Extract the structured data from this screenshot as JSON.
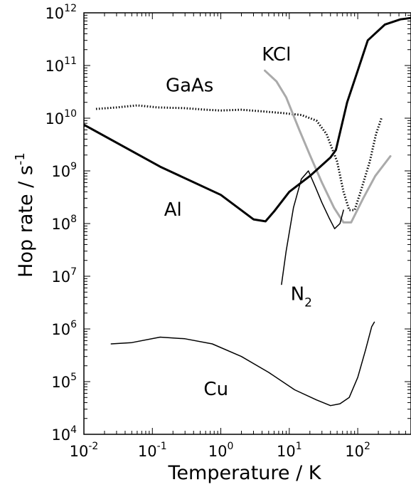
{
  "chart_data": {
    "type": "line",
    "xlabel": "Temperature / K",
    "ylabel": {
      "base": "Hop rate / s",
      "sup": "-1"
    },
    "xscale": "log",
    "yscale": "log",
    "xlim": [
      0.01,
      600
    ],
    "ylim": [
      10000,
      1000000000000
    ],
    "grid": false,
    "legend": "none",
    "x_ticks": [
      {
        "base": "10",
        "exp": "-2",
        "value": 0.01
      },
      {
        "base": "10",
        "exp": "-1",
        "value": 0.1
      },
      {
        "base": "10",
        "exp": "0",
        "value": 1
      },
      {
        "base": "10",
        "exp": "1",
        "value": 10
      },
      {
        "base": "10",
        "exp": "2",
        "value": 100
      }
    ],
    "y_ticks": [
      {
        "base": "10",
        "exp": "4",
        "value": 10000
      },
      {
        "base": "10",
        "exp": "5",
        "value": 100000
      },
      {
        "base": "10",
        "exp": "6",
        "value": 1000000
      },
      {
        "base": "10",
        "exp": "7",
        "value": 10000000
      },
      {
        "base": "10",
        "exp": "8",
        "value": 100000000
      },
      {
        "base": "10",
        "exp": "9",
        "value": 1000000000
      },
      {
        "base": "10",
        "exp": "10",
        "value": 10000000000
      },
      {
        "base": "10",
        "exp": "11",
        "value": 100000000000
      },
      {
        "base": "10",
        "exp": "12",
        "value": 1000000000000
      }
    ],
    "series": [
      {
        "name": "GaAs",
        "style": "dotted-thick",
        "color": "#000000",
        "points": [
          [
            0.015,
            15000000000.0
          ],
          [
            0.03,
            16000000000.0
          ],
          [
            0.06,
            17500000000.0
          ],
          [
            0.12,
            16000000000.0
          ],
          [
            0.3,
            15500000000.0
          ],
          [
            0.6,
            14500000000.0
          ],
          [
            1.0,
            14000000000.0
          ],
          [
            2.0,
            14500000000.0
          ],
          [
            4.0,
            13500000000.0
          ],
          [
            8.0,
            12500000000.0
          ],
          [
            15.0,
            11500000000.0
          ],
          [
            25.0,
            9000000000.0
          ],
          [
            35.0,
            5000000000.0
          ],
          [
            50.0,
            1500000000.0
          ],
          [
            62.0,
            400000000.0
          ],
          [
            75.0,
            180000000.0
          ],
          [
            90.0,
            180000000.0
          ],
          [
            110.0,
            400000000.0
          ],
          [
            150.0,
            1500000000.0
          ],
          [
            185.0,
            5000000000.0
          ],
          [
            225.0,
            10500000000.0
          ]
        ]
      },
      {
        "name": "KCl",
        "style": "solid-thick",
        "color": "#aaaaaa",
        "points": [
          [
            4.4,
            80000000000.0
          ],
          [
            6.5,
            50000000000.0
          ],
          [
            9.0,
            25000000000.0
          ],
          [
            14.0,
            6000000000.0
          ],
          [
            20.0,
            2000000000.0
          ],
          [
            30.0,
            600000000.0
          ],
          [
            45.0,
            200000000.0
          ],
          [
            62.0,
            105000000.0
          ],
          [
            80.0,
            105000000.0
          ],
          [
            120.0,
            300000000.0
          ],
          [
            180.0,
            800000000.0
          ],
          [
            300.0,
            1900000000.0
          ]
        ]
      },
      {
        "name": "Al",
        "style": "solid-thick",
        "color": "#000000",
        "points": [
          [
            0.01,
            7500000000.0
          ],
          [
            0.13,
            1200000000.0
          ],
          [
            1.0,
            350000000.0
          ],
          [
            3.0,
            120000000.0
          ],
          [
            4.5,
            110000000.0
          ],
          [
            6.0,
            170000000.0
          ],
          [
            10.0,
            400000000.0
          ],
          [
            20.0,
            800000000.0
          ],
          [
            40.0,
            1800000000.0
          ],
          [
            48.0,
            2500000000.0
          ],
          [
            70.0,
            20000000000.0
          ],
          [
            100.0,
            80000000000.0
          ],
          [
            140.0,
            300000000000.0
          ],
          [
            250.0,
            600000000000.0
          ],
          [
            420.0,
            750000000000.0
          ],
          [
            600.0,
            800000000000.0
          ]
        ]
      },
      {
        "name": "N",
        "sub": "2",
        "style": "solid-thin",
        "color": "#000000",
        "points": [
          [
            7.7,
            7000000.0
          ],
          [
            9.0,
            30000000.0
          ],
          [
            11.5,
            200000000.0
          ],
          [
            15.0,
            700000000.0
          ],
          [
            19.0,
            1000000000.0
          ],
          [
            24.0,
            500000000.0
          ],
          [
            30.0,
            250000000.0
          ],
          [
            38.0,
            130000000.0
          ],
          [
            46.0,
            80000000.0
          ],
          [
            55.0,
            100000000.0
          ],
          [
            62.0,
            180000000.0
          ]
        ]
      },
      {
        "name": "Cu",
        "style": "solid-thin",
        "color": "#000000",
        "points": [
          [
            0.025,
            520000.0
          ],
          [
            0.05,
            550000.0
          ],
          [
            0.13,
            700000.0
          ],
          [
            0.3,
            650000.0
          ],
          [
            0.75,
            520000.0
          ],
          [
            2.0,
            300000.0
          ],
          [
            5.0,
            150000.0
          ],
          [
            12.0,
            70000.0
          ],
          [
            25.0,
            45000.0
          ],
          [
            40.0,
            35000.0
          ],
          [
            55.0,
            38000.0
          ],
          [
            75.0,
            50000.0
          ],
          [
            100.0,
            120000.0
          ],
          [
            130.0,
            400000.0
          ],
          [
            160.0,
            1100000.0
          ],
          [
            175.0,
            1350000.0
          ]
        ]
      }
    ],
    "annotations": [
      {
        "text": "GaAs",
        "x": 0.35,
        "y": 32000000000.0
      },
      {
        "text": "KCl",
        "x": 6.5,
        "y": 125000000000.0
      },
      {
        "text": "Al",
        "x": 0.2,
        "y": 140000000.0
      },
      {
        "text": "N",
        "sub": "2",
        "x": 15.0,
        "y": 3500000.0
      },
      {
        "text": "Cu",
        "x": 0.85,
        "y": 55000.0
      }
    ]
  }
}
